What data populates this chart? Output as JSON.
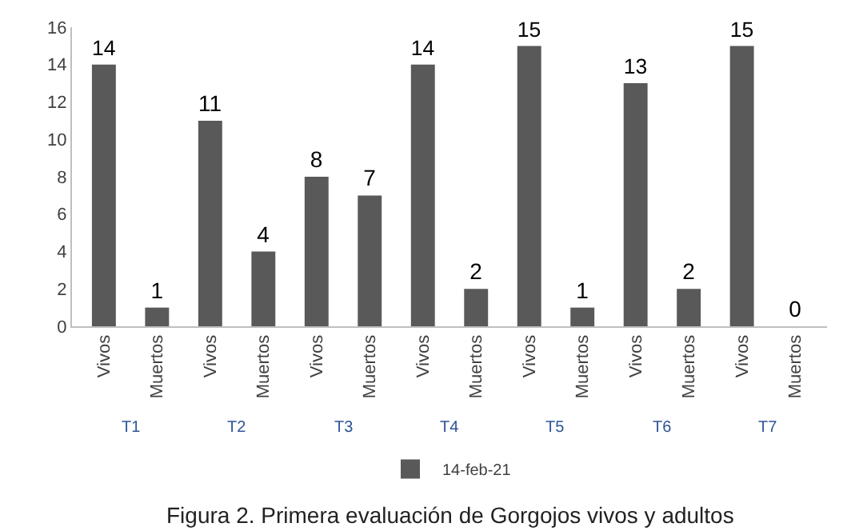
{
  "chart_data": {
    "type": "bar",
    "categories": [
      "Vivos",
      "Muertos",
      "Vivos",
      "Muertos",
      "Vivos",
      "Muertos",
      "Vivos",
      "Muertos",
      "Vivos",
      "Muertos",
      "Vivos",
      "Muertos",
      "Vivos",
      "Muertos"
    ],
    "series": [
      {
        "name": "14-feb-21",
        "color": "#595959",
        "values": [
          14,
          1,
          11,
          4,
          8,
          7,
          14,
          2,
          15,
          1,
          13,
          2,
          15,
          0
        ]
      }
    ],
    "ylim": [
      0,
      16
    ],
    "yticks": [
      0,
      2,
      4,
      6,
      8,
      10,
      12,
      14,
      16
    ],
    "data_labels": true,
    "legend": "bottom",
    "grid": false,
    "annotations": [
      "T1",
      "T2",
      "T3",
      "T4",
      "T5",
      "T6",
      "T7",
      "Figura 2. Primera evaluación de Gorgojos vivos y adultos"
    ]
  }
}
